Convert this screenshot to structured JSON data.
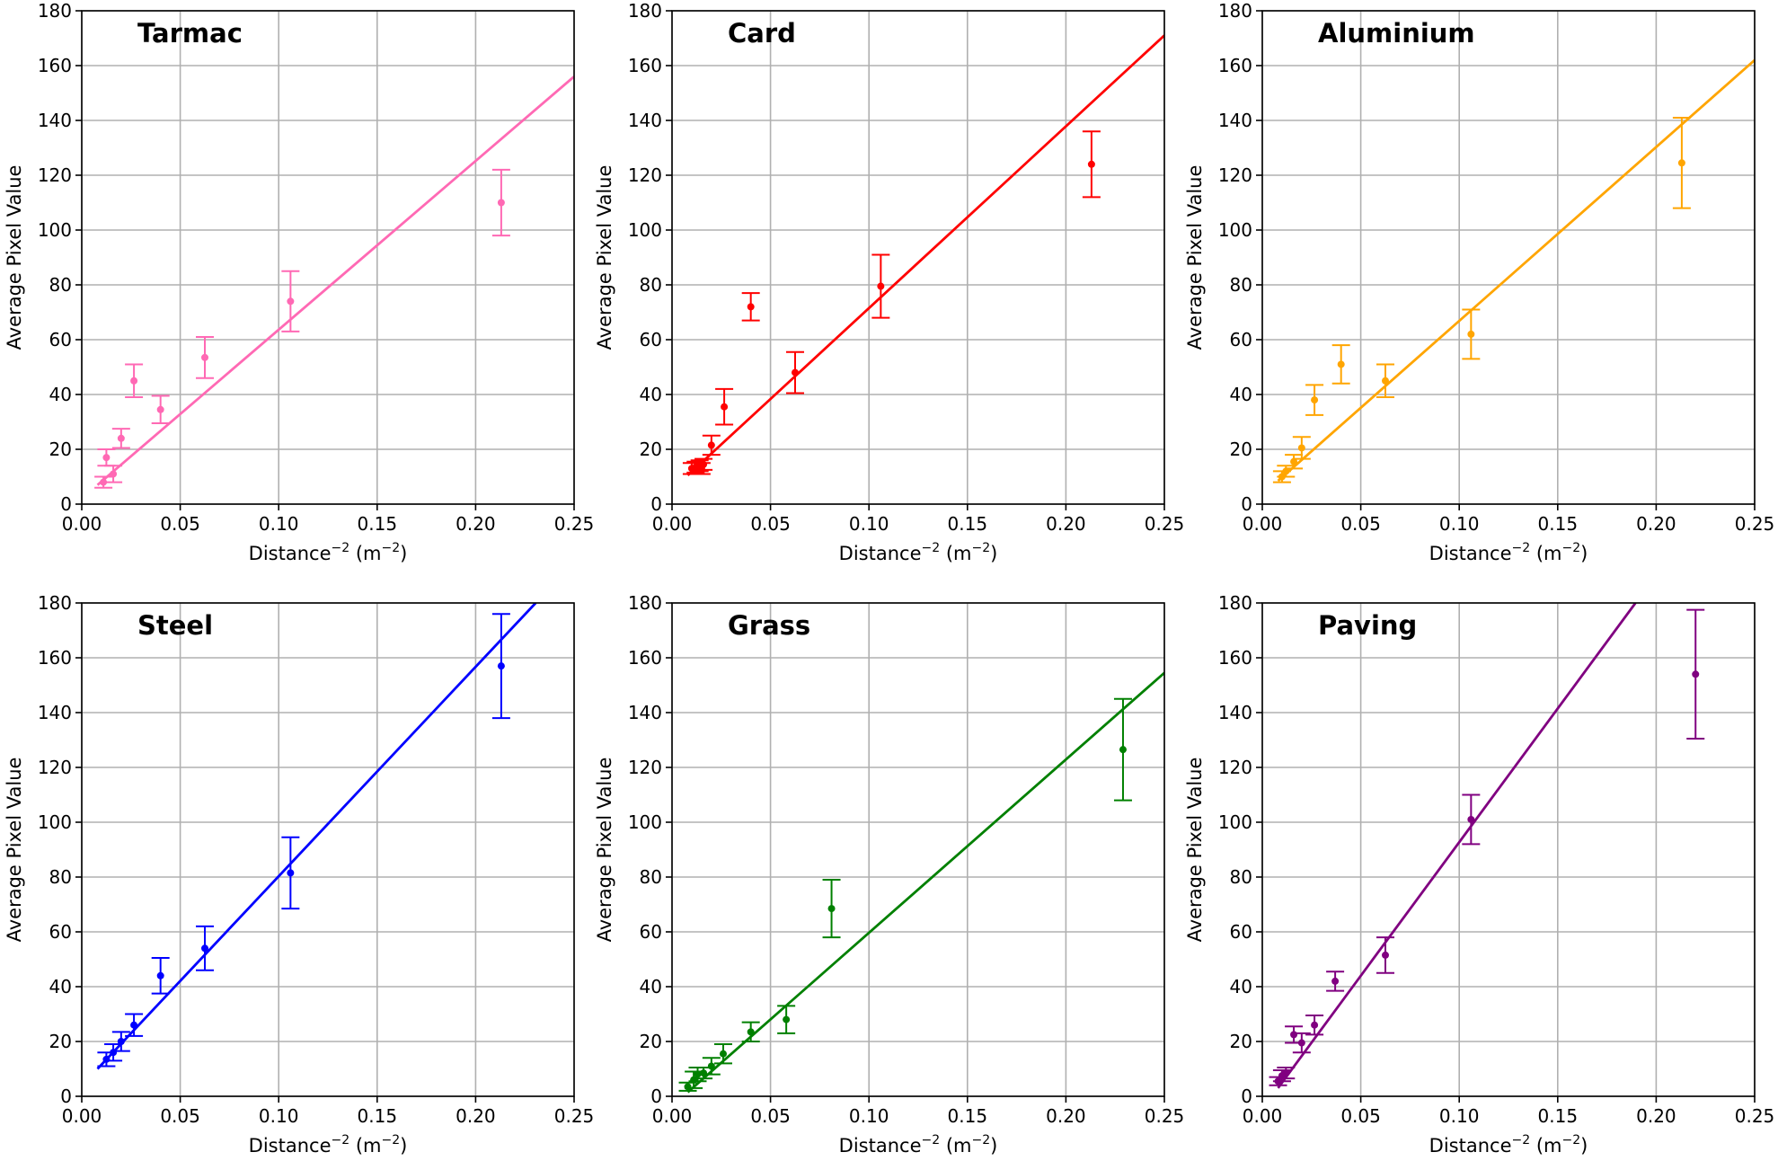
{
  "figure": {
    "xlabel_base": "Distance",
    "xlabel_sup": "−2",
    "xlabel_unit_open": " (m",
    "xlabel_unit_sup": "−2",
    "xlabel_unit_close": ")",
    "ylabel": "Average Pixel Value",
    "x_ticks": [
      "0.00",
      "0.05",
      "0.10",
      "0.15",
      "0.20",
      "0.25"
    ],
    "y_ticks": [
      "0",
      "20",
      "40",
      "60",
      "80",
      "100",
      "120",
      "140",
      "160",
      "180"
    ],
    "xlim": [
      0,
      0.25
    ],
    "ylim": [
      0,
      180
    ],
    "grid": true
  },
  "chart_data": [
    {
      "type": "scatter",
      "title": "Tarmac",
      "color": "#ff69b4",
      "xlabel": "Distance−2 (m−2)",
      "ylabel": "Average Pixel Value",
      "xlim": [
        0,
        0.25
      ],
      "ylim": [
        0,
        180
      ],
      "points": [
        {
          "x": 0.011,
          "y": 8,
          "err": 2
        },
        {
          "x": 0.0125,
          "y": 17,
          "err": 3
        },
        {
          "x": 0.016,
          "y": 11,
          "err": 3
        },
        {
          "x": 0.02,
          "y": 24,
          "err": 3.5
        },
        {
          "x": 0.0265,
          "y": 45,
          "err": 6
        },
        {
          "x": 0.04,
          "y": 34.5,
          "err": 5
        },
        {
          "x": 0.0625,
          "y": 53.5,
          "err": 7.5
        },
        {
          "x": 0.106,
          "y": 74,
          "err": 11
        },
        {
          "x": 0.213,
          "y": 110,
          "err": 12
        }
      ],
      "fit_line": {
        "x": [
          0.008,
          0.25
        ],
        "y": [
          7,
          156
        ]
      }
    },
    {
      "type": "scatter",
      "title": "Card",
      "color": "#ff0000",
      "xlabel": "Distance−2 (m−2)",
      "ylabel": "Average Pixel Value",
      "xlim": [
        0,
        0.25
      ],
      "ylim": [
        0,
        180
      ],
      "points": [
        {
          "x": 0.01,
          "y": 13,
          "err": 2
        },
        {
          "x": 0.012,
          "y": 13.5,
          "err": 2
        },
        {
          "x": 0.014,
          "y": 14,
          "err": 2
        },
        {
          "x": 0.015,
          "y": 13,
          "err": 2
        },
        {
          "x": 0.016,
          "y": 14.5,
          "err": 2
        },
        {
          "x": 0.02,
          "y": 21.5,
          "err": 3.5
        },
        {
          "x": 0.0265,
          "y": 35.5,
          "err": 6.5
        },
        {
          "x": 0.04,
          "y": 72,
          "err": 5
        },
        {
          "x": 0.0625,
          "y": 48,
          "err": 7.5
        },
        {
          "x": 0.106,
          "y": 79.5,
          "err": 11.5
        },
        {
          "x": 0.213,
          "y": 124,
          "err": 12
        }
      ],
      "fit_line": {
        "x": [
          0.008,
          0.25
        ],
        "y": [
          10.5,
          171
        ]
      }
    },
    {
      "type": "scatter",
      "title": "Aluminium",
      "color": "#ffa500",
      "xlabel": "Distance−2 (m−2)",
      "ylabel": "Average Pixel Value",
      "xlim": [
        0,
        0.25
      ],
      "ylim": [
        0,
        180
      ],
      "points": [
        {
          "x": 0.01,
          "y": 10,
          "err": 2
        },
        {
          "x": 0.012,
          "y": 12,
          "err": 2
        },
        {
          "x": 0.016,
          "y": 15.5,
          "err": 2.5
        },
        {
          "x": 0.02,
          "y": 20.5,
          "err": 4
        },
        {
          "x": 0.0265,
          "y": 38,
          "err": 5.5
        },
        {
          "x": 0.04,
          "y": 51,
          "err": 7
        },
        {
          "x": 0.0625,
          "y": 45,
          "err": 6
        },
        {
          "x": 0.106,
          "y": 62,
          "err": 9
        },
        {
          "x": 0.213,
          "y": 124.5,
          "err": 16.5
        }
      ],
      "fit_line": {
        "x": [
          0.008,
          0.25
        ],
        "y": [
          8.5,
          162
        ]
      }
    },
    {
      "type": "scatter",
      "title": "Steel",
      "color": "#0000ff",
      "xlabel": "Distance−2 (m−2)",
      "ylabel": "Average Pixel Value",
      "xlim": [
        0,
        0.25
      ],
      "ylim": [
        0,
        180
      ],
      "points": [
        {
          "x": 0.0125,
          "y": 13.5,
          "err": 2.5
        },
        {
          "x": 0.016,
          "y": 16,
          "err": 3
        },
        {
          "x": 0.02,
          "y": 20,
          "err": 3.5
        },
        {
          "x": 0.0265,
          "y": 26,
          "err": 4
        },
        {
          "x": 0.04,
          "y": 44,
          "err": 6.5
        },
        {
          "x": 0.0625,
          "y": 54,
          "err": 8
        },
        {
          "x": 0.106,
          "y": 81.5,
          "err": 13
        },
        {
          "x": 0.213,
          "y": 157,
          "err": 19
        }
      ],
      "fit_line": {
        "x": [
          0.008,
          0.2305
        ],
        "y": [
          10,
          180
        ]
      }
    },
    {
      "type": "scatter",
      "title": "Grass",
      "color": "#008000",
      "xlabel": "Distance−2 (m−2)",
      "ylabel": "Average Pixel Value",
      "xlim": [
        0,
        0.25
      ],
      "ylim": [
        0,
        180
      ],
      "points": [
        {
          "x": 0.008,
          "y": 3.5,
          "err": 1.5
        },
        {
          "x": 0.011,
          "y": 6,
          "err": 3
        },
        {
          "x": 0.013,
          "y": 8,
          "err": 2.5
        },
        {
          "x": 0.016,
          "y": 8.5,
          "err": 2
        },
        {
          "x": 0.02,
          "y": 11,
          "err": 3
        },
        {
          "x": 0.026,
          "y": 15.5,
          "err": 3.5
        },
        {
          "x": 0.04,
          "y": 23.5,
          "err": 3.5
        },
        {
          "x": 0.058,
          "y": 28,
          "err": 5
        },
        {
          "x": 0.081,
          "y": 68.5,
          "err": 10.5
        },
        {
          "x": 0.229,
          "y": 126.5,
          "err": 18.5
        }
      ],
      "fit_line": {
        "x": [
          0.008,
          0.25
        ],
        "y": [
          1.5,
          154.5
        ]
      }
    },
    {
      "type": "scatter",
      "title": "Paving",
      "color": "#800080",
      "xlabel": "Distance−2 (m−2)",
      "ylabel": "Average Pixel Value",
      "xlim": [
        0,
        0.25
      ],
      "ylim": [
        0,
        180
      ],
      "points": [
        {
          "x": 0.008,
          "y": 5.5,
          "err": 1.5
        },
        {
          "x": 0.01,
          "y": 7.5,
          "err": 2
        },
        {
          "x": 0.012,
          "y": 8.5,
          "err": 2
        },
        {
          "x": 0.016,
          "y": 22.5,
          "err": 3
        },
        {
          "x": 0.02,
          "y": 19.5,
          "err": 3.5
        },
        {
          "x": 0.0265,
          "y": 26,
          "err": 3.5
        },
        {
          "x": 0.037,
          "y": 42,
          "err": 3.5
        },
        {
          "x": 0.0625,
          "y": 51.5,
          "err": 6.5
        },
        {
          "x": 0.106,
          "y": 101,
          "err": 9
        },
        {
          "x": 0.22,
          "y": 154,
          "err": 23.5
        }
      ],
      "fit_line": {
        "x": [
          0.008,
          0.1895
        ],
        "y": [
          3,
          180
        ]
      }
    }
  ]
}
